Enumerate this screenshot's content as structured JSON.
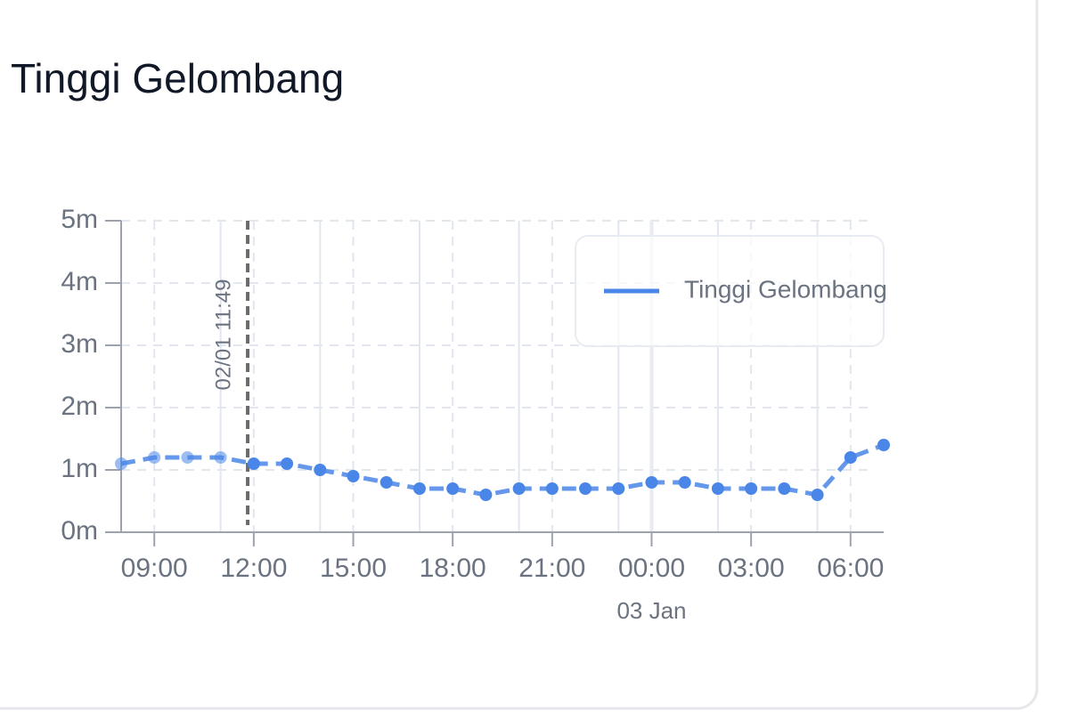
{
  "chart_data": {
    "type": "line",
    "title": "Tinggi Gelombang",
    "x": [
      "08:00",
      "09:00",
      "10:00",
      "11:00",
      "12:00",
      "13:00",
      "14:00",
      "15:00",
      "16:00",
      "17:00",
      "18:00",
      "19:00",
      "20:00",
      "21:00",
      "22:00",
      "23:00",
      "00:00",
      "01:00",
      "02:00",
      "03:00",
      "04:00",
      "05:00",
      "06:00",
      "07:00"
    ],
    "series": [
      {
        "name": "Tinggi Gelombang",
        "color": "#4a86e8",
        "values": [
          1.1,
          1.2,
          1.2,
          1.2,
          1.1,
          1.1,
          1.0,
          0.9,
          0.8,
          0.7,
          0.7,
          0.6,
          0.7,
          0.7,
          0.7,
          0.7,
          0.8,
          0.8,
          0.7,
          0.7,
          0.7,
          0.6,
          1.2,
          1.4
        ]
      }
    ],
    "xlim": [
      "08:00",
      "07:00"
    ],
    "xticks": [
      "09:00",
      "12:00",
      "15:00",
      "18:00",
      "21:00",
      "00:00",
      "03:00",
      "06:00"
    ],
    "date_label": {
      "value": "00:00",
      "label": "03 Jan"
    },
    "marker": {
      "value": "11:49",
      "label": "02/01 11:49"
    },
    "ylim": [
      0,
      5
    ],
    "yticks": [
      {
        "value": 0,
        "label": "0m"
      },
      {
        "value": 1,
        "label": "1m"
      },
      {
        "value": 2,
        "label": "2m"
      },
      {
        "value": 3,
        "label": "3m"
      },
      {
        "value": 4,
        "label": "4m"
      },
      {
        "value": 5,
        "label": "5m"
      }
    ],
    "grid": true,
    "legend": "top-right"
  }
}
